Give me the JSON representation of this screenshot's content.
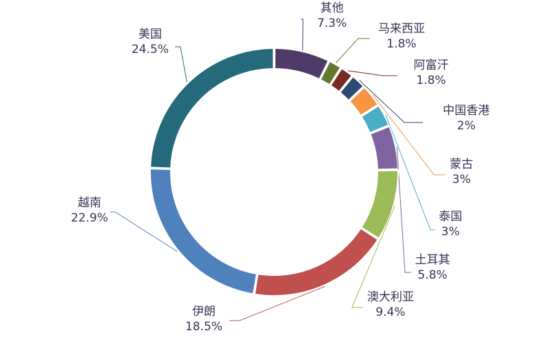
{
  "chart_data": {
    "type": "pie",
    "variant": "donut",
    "title": "",
    "legend": "none",
    "slices": [
      {
        "name": "其他",
        "value": 7.3,
        "label": "7.3%",
        "color": "#4F3A67"
      },
      {
        "name": "马来西亚",
        "value": 1.8,
        "label": "1.8%",
        "color": "#617A2E"
      },
      {
        "name": "阿富汗",
        "value": 1.8,
        "label": "1.8%",
        "color": "#7A2A25"
      },
      {
        "name": "中国香港",
        "value": 2,
        "label": "2%",
        "color": "#2B4A75"
      },
      {
        "name": "蒙古",
        "value": 3,
        "label": "3%",
        "color": "#F69645"
      },
      {
        "name": "泰国",
        "value": 3,
        "label": "3%",
        "color": "#4BACC6"
      },
      {
        "name": "土耳其",
        "value": 5.8,
        "label": "5.8%",
        "color": "#8064A2"
      },
      {
        "name": "澳大利亚",
        "value": 9.4,
        "label": "9.4%",
        "color": "#9BBB59"
      },
      {
        "name": "伊朗",
        "value": 18.5,
        "label": "18.5%",
        "color": "#C0504D"
      },
      {
        "name": "越南",
        "value": 22.9,
        "label": "22.9%",
        "color": "#4F81BD"
      },
      {
        "name": "美国",
        "value": 24.5,
        "label": "24.5%",
        "color": "#246A7B"
      }
    ]
  }
}
